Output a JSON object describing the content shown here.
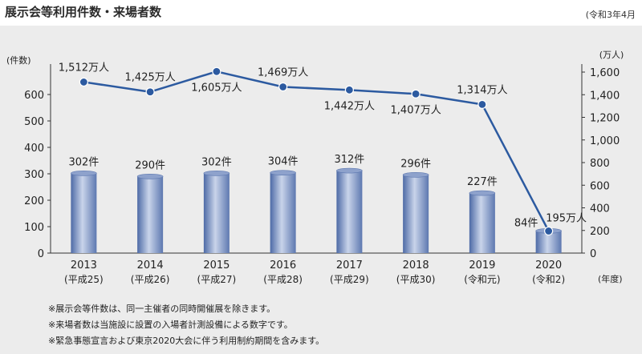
{
  "page": {
    "title": "展示会等利用件数・来場者数",
    "date_note": "(令和3年4月"
  },
  "chart_data": {
    "type": "bar",
    "categories": [
      {
        "year": "2013",
        "era": "(平成25)"
      },
      {
        "year": "2014",
        "era": "(平成26)"
      },
      {
        "year": "2015",
        "era": "(平成27)"
      },
      {
        "year": "2016",
        "era": "(平成28)"
      },
      {
        "year": "2017",
        "era": "(平成29)"
      },
      {
        "year": "2018",
        "era": "(平成30)"
      },
      {
        "year": "2019",
        "era": "(令和元)"
      },
      {
        "year": "2020",
        "era": "(令和2)"
      }
    ],
    "series": [
      {
        "type": "bar",
        "axis": "left",
        "values": [
          302,
          290,
          302,
          304,
          312,
          296,
          227,
          84
        ],
        "labels": [
          "302件",
          "290件",
          "302件",
          "304件",
          "312件",
          "296件",
          "227件",
          "84件"
        ]
      },
      {
        "type": "line",
        "axis": "right",
        "values": [
          1512,
          1425,
          1605,
          1469,
          1442,
          1407,
          1314,
          195
        ],
        "labels": [
          "1,512万人",
          "1,425万人",
          "1,605万人",
          "1,469万人",
          "1,442万人",
          "1,407万人",
          "1,314万人",
          "195万人"
        ]
      }
    ],
    "left_axis": {
      "unit_label": "(件数)",
      "range": [
        0,
        600
      ],
      "ticks": [
        "0",
        "100",
        "200",
        "300",
        "400",
        "500",
        "600"
      ]
    },
    "right_axis": {
      "unit_label": "(万人)",
      "range": [
        0,
        1600
      ],
      "ticks": [
        "0",
        "200",
        "400",
        "600",
        "800",
        "1,000",
        "1,200",
        "1,400",
        "1,600"
      ]
    },
    "x_axis": {
      "unit_label": "(年度)"
    },
    "grid": false,
    "colors": {
      "bar": "#6f86b8",
      "bar_light": "#c9d4ea",
      "line": "#2c5aa0",
      "axis": "#333333"
    }
  },
  "notes": [
    "※展示会等件数は、同一主催者の同時開催展を除きます。",
    "※来場者数は当施設に設置の入場者計測設備による数字です。",
    "※緊急事態宣言および東京2020大会に伴う利用制約期間を含みます。"
  ]
}
